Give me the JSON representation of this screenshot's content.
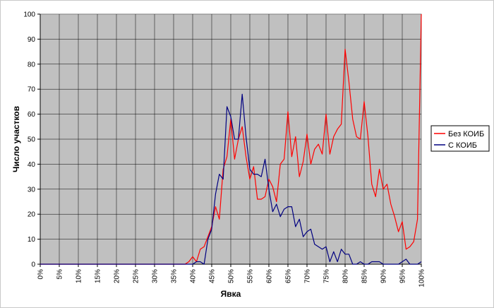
{
  "chart_data": {
    "type": "line",
    "title": "",
    "xlabel": "Явка",
    "ylabel": "Число участков",
    "xlim": [
      0,
      100
    ],
    "ylim": [
      0,
      100
    ],
    "x_tick_labels": [
      "0%",
      "5%",
      "10%",
      "15%",
      "20%",
      "25%",
      "30%",
      "35%",
      "40%",
      "45%",
      "50%",
      "55%",
      "60%",
      "65%",
      "70%",
      "75%",
      "80%",
      "85%",
      "90%",
      "95%",
      "100%"
    ],
    "y_tick_labels": [
      "0",
      "10",
      "20",
      "30",
      "40",
      "50",
      "60",
      "70",
      "80",
      "90",
      "100"
    ],
    "grid": true,
    "plot_background": "#c0c0c0",
    "legend_position": "right",
    "series": [
      {
        "name": "Без КОИБ",
        "color": "#ff0000",
        "x": [
          0,
          5,
          10,
          15,
          20,
          25,
          30,
          35,
          38,
          39,
          40,
          41,
          42,
          43,
          44,
          45,
          46,
          47,
          48,
          49,
          50,
          51,
          52,
          53,
          54,
          55,
          56,
          57,
          58,
          59,
          60,
          61,
          62,
          63,
          64,
          65,
          66,
          67,
          68,
          69,
          70,
          71,
          72,
          73,
          74,
          75,
          76,
          77,
          78,
          79,
          80,
          81,
          82,
          83,
          84,
          85,
          86,
          87,
          88,
          89,
          90,
          91,
          92,
          93,
          94,
          95,
          96,
          97,
          98,
          99,
          100
        ],
        "values": [
          0,
          0,
          0,
          0,
          0,
          0,
          0,
          0,
          0,
          1,
          3,
          1,
          6,
          7,
          11,
          15,
          23,
          18,
          38,
          43,
          58,
          42,
          50,
          55,
          43,
          34,
          39,
          26,
          26,
          27,
          34,
          31,
          25,
          40,
          42,
          61,
          43,
          51,
          35,
          41,
          52,
          40,
          46,
          48,
          44,
          60,
          44,
          51,
          54,
          56,
          86,
          73,
          58,
          51,
          50,
          65,
          51,
          32,
          27,
          38,
          30,
          32,
          24,
          19,
          13,
          17,
          6,
          7,
          9,
          18,
          100
        ]
      },
      {
        "name": "С КОИБ",
        "color": "#000080",
        "x": [
          0,
          5,
          10,
          15,
          20,
          25,
          30,
          35,
          40,
          41,
          42,
          43,
          44,
          45,
          46,
          47,
          48,
          49,
          50,
          51,
          52,
          53,
          54,
          55,
          56,
          57,
          58,
          59,
          60,
          61,
          62,
          63,
          64,
          65,
          66,
          67,
          68,
          69,
          70,
          71,
          72,
          73,
          74,
          75,
          76,
          77,
          78,
          79,
          80,
          81,
          82,
          83,
          84,
          85,
          86,
          87,
          88,
          89,
          90,
          91,
          92,
          93,
          94,
          95,
          96,
          97,
          98,
          99,
          100
        ],
        "values": [
          0,
          0,
          0,
          0,
          0,
          0,
          0,
          0,
          0,
          1,
          1,
          0,
          10,
          14,
          28,
          36,
          34,
          63,
          59,
          50,
          50,
          68,
          51,
          38,
          36,
          36,
          35,
          42,
          30,
          21,
          24,
          19,
          22,
          23,
          23,
          15,
          18,
          11,
          13,
          14,
          8,
          7,
          6,
          7,
          1,
          5,
          1,
          6,
          4,
          4,
          0,
          0,
          1,
          0,
          0,
          1,
          1,
          1,
          0,
          0,
          0,
          0,
          0,
          1,
          2,
          0,
          0,
          0,
          1
        ]
      }
    ]
  }
}
